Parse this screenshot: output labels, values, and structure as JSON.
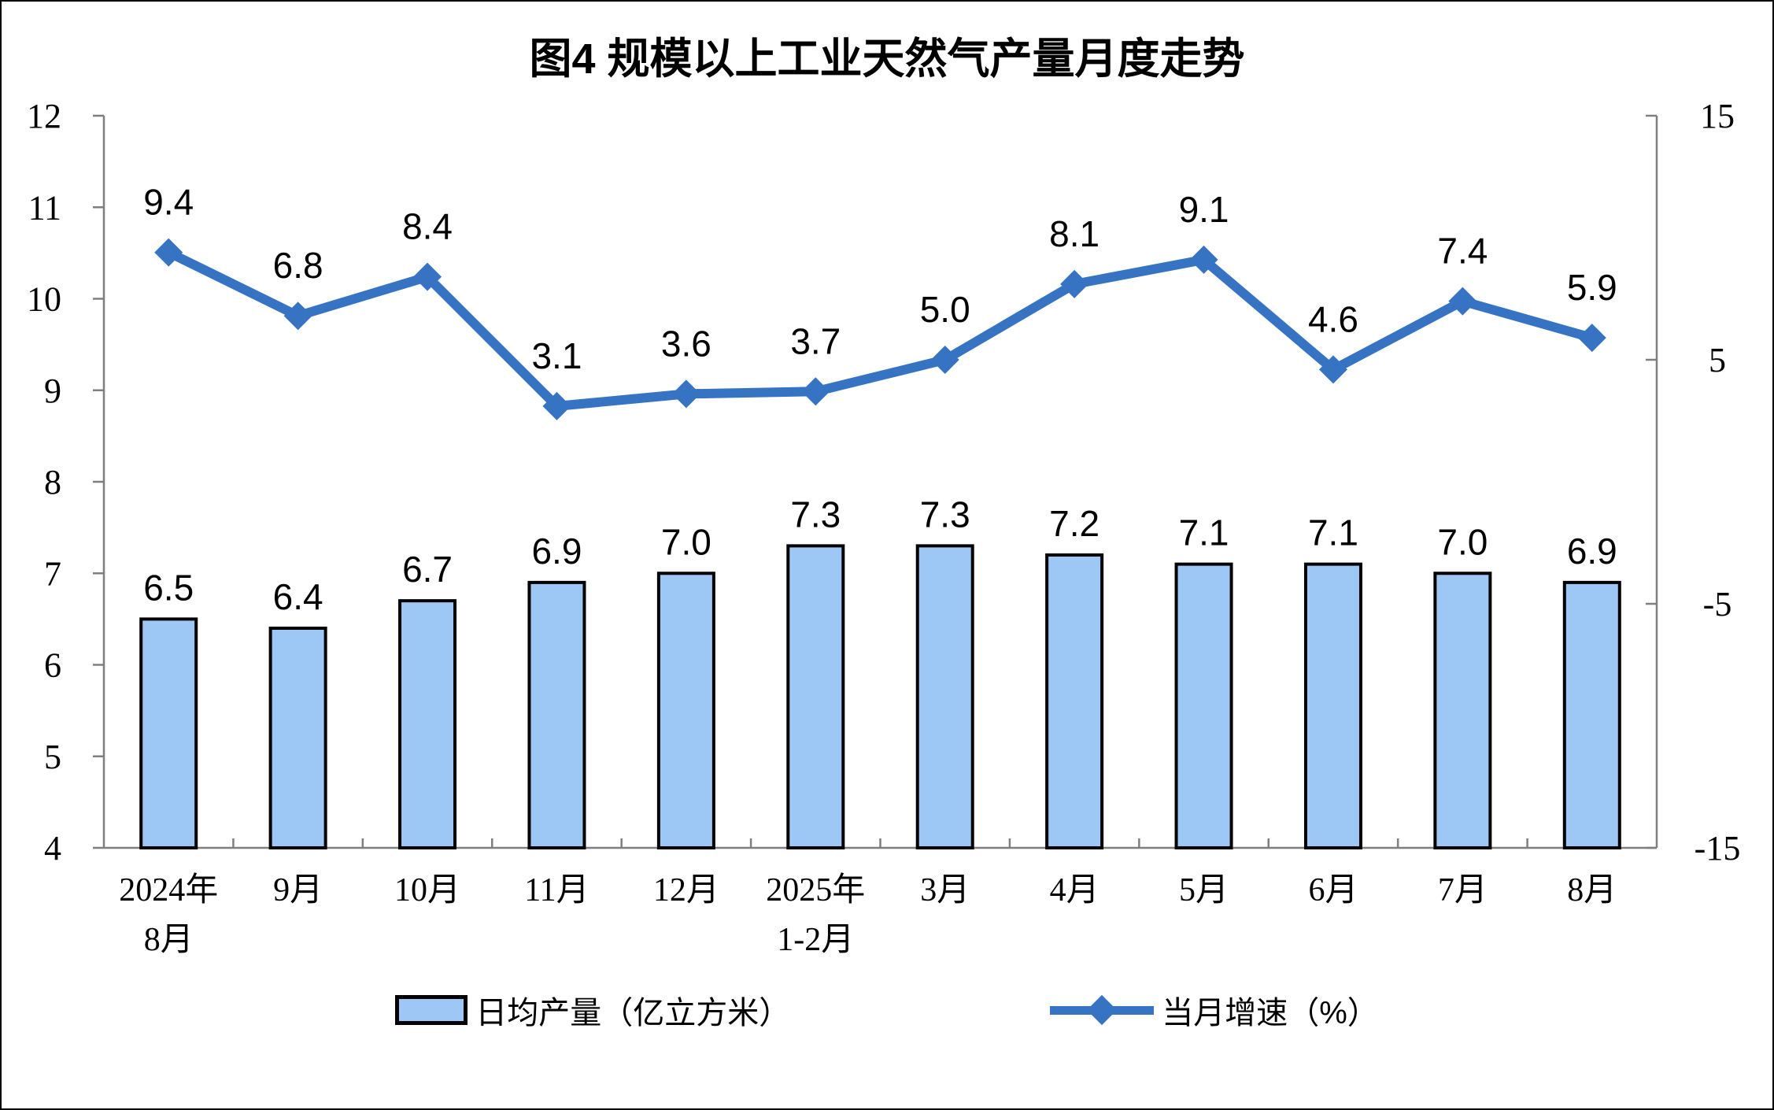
{
  "chart_data": {
    "type": "bar+line",
    "title": "图4 规模以上工业天然气产量月度走势",
    "categories": [
      [
        "2024年",
        "8月"
      ],
      [
        "9月"
      ],
      [
        "10月"
      ],
      [
        "11月"
      ],
      [
        "12月"
      ],
      [
        "2025年",
        "1-2月"
      ],
      [
        "3月"
      ],
      [
        "4月"
      ],
      [
        "5月"
      ],
      [
        "6月"
      ],
      [
        "7月"
      ],
      [
        "8月"
      ]
    ],
    "series": [
      {
        "name": "日均产量（亿立方米）",
        "type": "bar",
        "axis": "left",
        "values": [
          6.5,
          6.4,
          6.7,
          6.9,
          7.0,
          7.3,
          7.3,
          7.2,
          7.1,
          7.1,
          7.0,
          6.9
        ],
        "labels": [
          "6.5",
          "6.4",
          "6.7",
          "6.9",
          "7.0",
          "7.3",
          "7.3",
          "7.2",
          "7.1",
          "7.1",
          "7.0",
          "6.9"
        ]
      },
      {
        "name": "当月增速（%）",
        "type": "line",
        "axis": "right",
        "values": [
          9.4,
          6.8,
          8.4,
          3.1,
          3.6,
          3.7,
          5.0,
          8.1,
          9.1,
          4.6,
          7.4,
          5.9
        ],
        "labels": [
          "9.4",
          "6.8",
          "8.4",
          "3.1",
          "3.6",
          "3.7",
          "5.0",
          "8.1",
          "9.1",
          "4.6",
          "7.4",
          "5.9"
        ]
      }
    ],
    "left_axis": {
      "min": 4,
      "max": 12,
      "tick_values": [
        4,
        5,
        6,
        7,
        8,
        9,
        10,
        11,
        12
      ],
      "tick_labels": [
        "4",
        "5",
        "6",
        "7",
        "8",
        "9",
        "10",
        "11",
        "12"
      ]
    },
    "right_axis": {
      "min": -15,
      "max": 15,
      "tick_values": [
        -15,
        -5,
        5,
        15
      ],
      "tick_labels": [
        "-15",
        "-5",
        "5",
        "15"
      ]
    },
    "grid": false,
    "legend_position": "bottom",
    "colors": {
      "bar_fill": "#9DC7F4",
      "bar_stroke": "#000000",
      "line": "#3673C2",
      "axis": "#7F7F7F",
      "text": "#000000"
    }
  }
}
